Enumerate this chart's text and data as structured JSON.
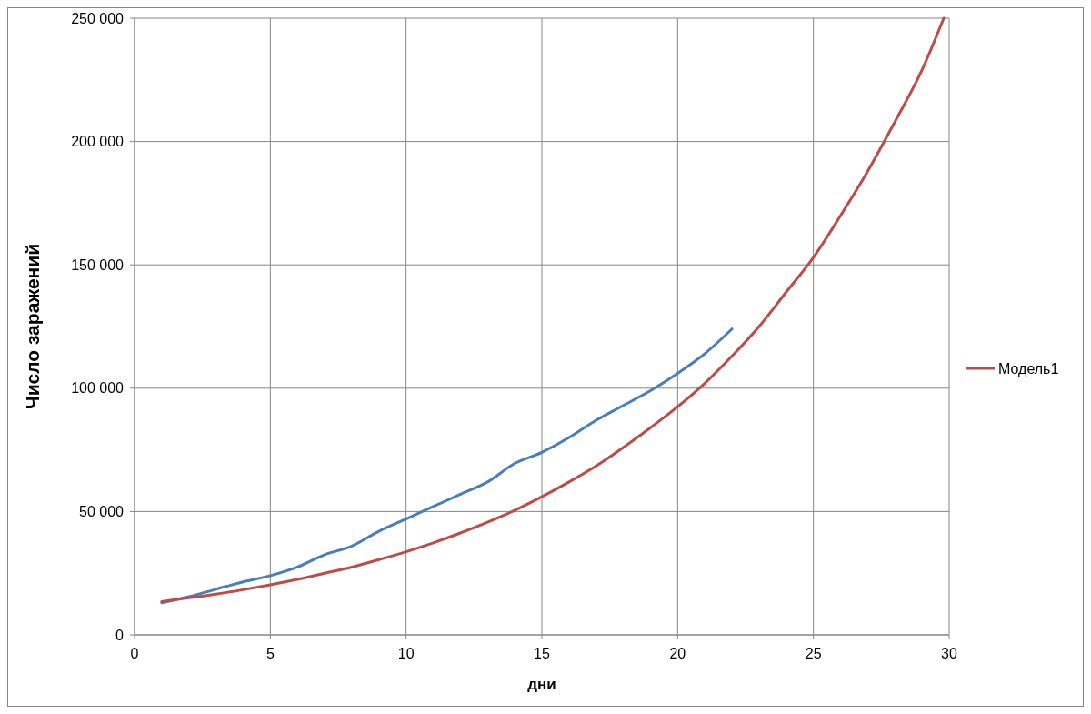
{
  "chart_data": {
    "type": "line",
    "xlabel": "дни",
    "ylabel": "Число заражений",
    "xlim": [
      0,
      30
    ],
    "xticks": [
      0,
      5,
      10,
      15,
      20,
      25,
      30
    ],
    "ylim": [
      0,
      250000
    ],
    "yticks": [
      {
        "value": 0,
        "label": "0"
      },
      {
        "value": 50000,
        "label": "50 000"
      },
      {
        "value": 100000,
        "label": "100 000"
      },
      {
        "value": 150000,
        "label": "150 000"
      },
      {
        "value": 200000,
        "label": "200 000"
      },
      {
        "value": 250000,
        "label": "250 000"
      }
    ],
    "grid": true,
    "legend": "right",
    "marker": "none",
    "line_style": "solid",
    "series": [
      {
        "color": "#4a7ebb",
        "x": [
          1,
          2,
          3,
          4,
          5,
          6,
          7,
          8,
          9,
          10,
          11,
          12,
          13,
          14,
          15,
          16,
          17,
          18,
          19,
          20,
          21,
          22
        ],
        "values": [
          13000,
          15500,
          18500,
          21500,
          24000,
          27500,
          32500,
          36000,
          42000,
          47000,
          52000,
          57000,
          62000,
          69500,
          74000,
          80000,
          87000,
          93000,
          99000,
          106000,
          114000,
          124000
        ]
      },
      {
        "name": "Модель1",
        "color": "#be4b48",
        "x": [
          1,
          2,
          3,
          4,
          5,
          6,
          7,
          8,
          9,
          10,
          11,
          12,
          13,
          14,
          15,
          16,
          17,
          18,
          19,
          20,
          21,
          22,
          23,
          24,
          25,
          26,
          27,
          28,
          29,
          29.8
        ],
        "values": [
          13500,
          15000,
          16500,
          18300,
          20300,
          22500,
          25000,
          27500,
          30500,
          33700,
          37300,
          41300,
          45700,
          50500,
          56000,
          62000,
          68500,
          76000,
          84000,
          92500,
          102000,
          113000,
          125000,
          139000,
          153000,
          170000,
          188000,
          208000,
          229000,
          250000
        ]
      }
    ]
  }
}
